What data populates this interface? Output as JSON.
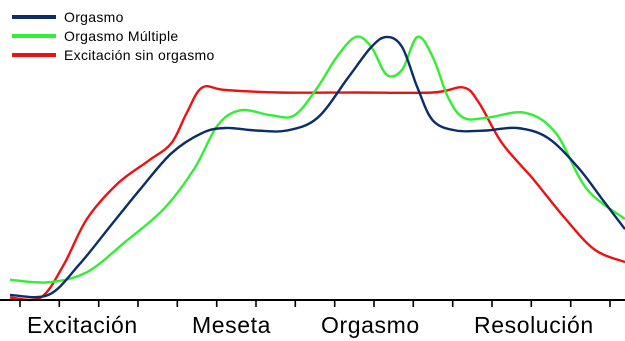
{
  "chart_data": {
    "type": "line",
    "title": "",
    "xlabel": "",
    "ylabel": "",
    "legend_position": "top-left",
    "grid": false,
    "categories": [
      "Excitación",
      "Meseta",
      "Orgasmo",
      "Resolución"
    ],
    "xlim": [
      0,
      16
    ],
    "ylim": [
      0,
      100
    ],
    "x_ticks": 16,
    "series": [
      {
        "name": "Orgasmo",
        "color": "#0b2d6b",
        "x": [
          0,
          1.0,
          1.8,
          2.6,
          3.4,
          4.2,
          5.0,
          5.6,
          6.4,
          7.2,
          8.0,
          8.8,
          9.4,
          9.8,
          10.2,
          10.6,
          11.0,
          11.6,
          12.4,
          13.2,
          14.0,
          14.8,
          15.4,
          16.0
        ],
        "y": [
          2,
          2,
          14,
          29,
          44,
          58,
          66,
          68,
          67,
          67,
          72,
          88,
          100,
          104,
          100,
          84,
          71,
          67,
          67,
          68,
          64,
          52,
          40,
          28
        ]
      },
      {
        "name": "Orgasmo Múltiple",
        "color": "#33ee33",
        "x": [
          0,
          1.0,
          2.0,
          3.0,
          4.0,
          4.8,
          5.4,
          6.0,
          6.8,
          7.4,
          8.0,
          8.5,
          9.0,
          9.4,
          9.8,
          10.2,
          10.6,
          11.0,
          11.4,
          11.8,
          12.4,
          13.4,
          14.2,
          15.0,
          16.0
        ],
        "y": [
          8,
          7,
          11,
          23,
          36,
          52,
          69,
          75,
          73,
          73,
          84,
          96,
          104,
          100,
          89,
          91,
          104,
          96,
          80,
          72,
          72,
          74,
          66,
          44,
          32
        ]
      },
      {
        "name": "Excitación sin orgasmo",
        "color": "#ee1111",
        "x": [
          0,
          0.8,
          1.4,
          2.0,
          2.8,
          3.6,
          4.2,
          4.6,
          5.0,
          5.6,
          7.0,
          9.0,
          11.0,
          11.8,
          12.2,
          12.8,
          13.6,
          14.4,
          15.2,
          16.0
        ],
        "y": [
          1,
          1,
          14,
          32,
          46,
          55,
          62,
          74,
          84,
          83,
          82,
          82,
          82,
          84,
          78,
          62,
          48,
          33,
          20,
          15
        ]
      }
    ]
  }
}
